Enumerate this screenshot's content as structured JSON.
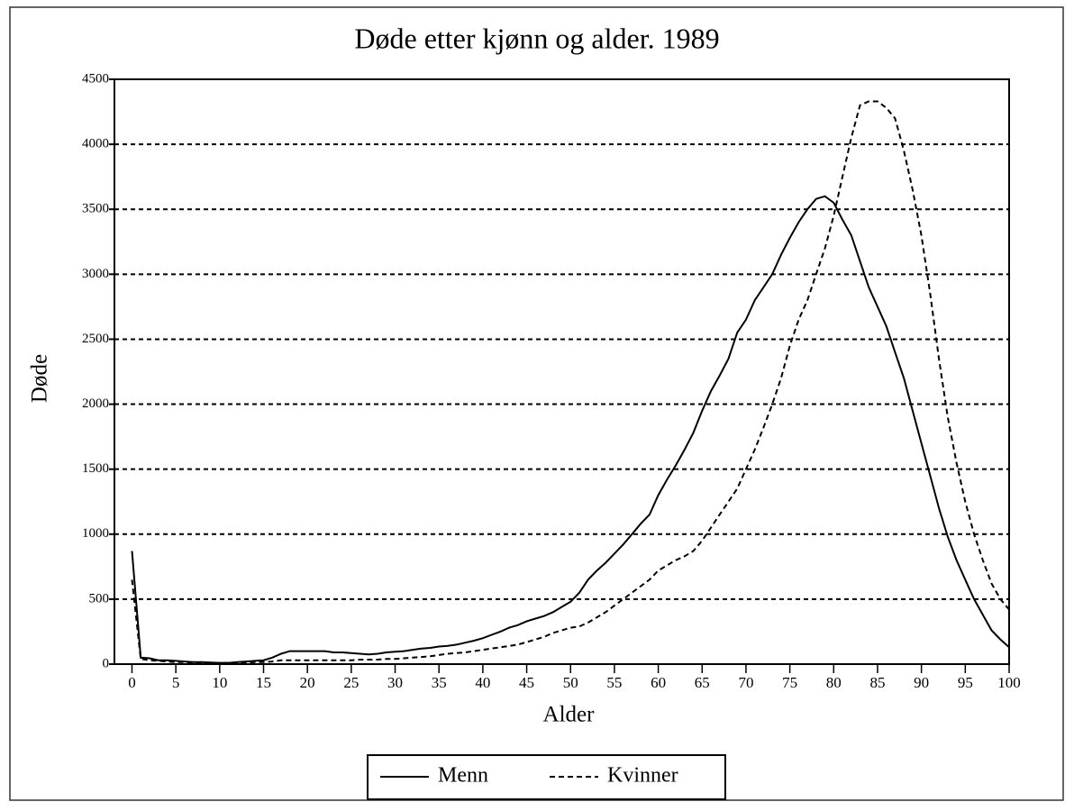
{
  "chart_data": {
    "type": "line",
    "title": "Døde etter kjønn og alder. 1989",
    "x_label": "Alder",
    "y_label": "Døde",
    "x": [
      0,
      1,
      2,
      3,
      4,
      5,
      6,
      7,
      8,
      9,
      10,
      11,
      12,
      13,
      14,
      15,
      16,
      17,
      18,
      19,
      20,
      21,
      22,
      23,
      24,
      25,
      26,
      27,
      28,
      29,
      30,
      31,
      32,
      33,
      34,
      35,
      36,
      37,
      38,
      39,
      40,
      41,
      42,
      43,
      44,
      45,
      46,
      47,
      48,
      49,
      50,
      51,
      52,
      53,
      54,
      55,
      56,
      57,
      58,
      59,
      60,
      61,
      62,
      63,
      64,
      65,
      66,
      67,
      68,
      69,
      70,
      71,
      72,
      73,
      74,
      75,
      76,
      77,
      78,
      79,
      80,
      81,
      82,
      83,
      84,
      85,
      86,
      87,
      88,
      89,
      90,
      91,
      92,
      93,
      94,
      95,
      96,
      97,
      98,
      99,
      100
    ],
    "series": [
      {
        "name": "Menn",
        "color": "#000000",
        "dash": "solid",
        "values": [
          870,
          50,
          45,
          30,
          30,
          25,
          20,
          15,
          15,
          12,
          10,
          10,
          15,
          20,
          25,
          30,
          50,
          80,
          100,
          100,
          100,
          100,
          100,
          90,
          90,
          85,
          80,
          75,
          80,
          90,
          95,
          100,
          110,
          120,
          125,
          135,
          140,
          150,
          165,
          180,
          200,
          225,
          250,
          280,
          300,
          330,
          350,
          370,
          400,
          440,
          480,
          550,
          650,
          720,
          780,
          850,
          920,
          1000,
          1080,
          1150,
          1300,
          1420,
          1530,
          1650,
          1780,
          1950,
          2100,
          2220,
          2350,
          2550,
          2650,
          2800,
          2900,
          3000,
          3150,
          3280,
          3400,
          3500,
          3580,
          3600,
          3550,
          3420,
          3300,
          3100,
          2900,
          2750,
          2600,
          2400,
          2200,
          1950,
          1700,
          1450,
          1200,
          980,
          800,
          650,
          500,
          380,
          260,
          190,
          130
        ]
      },
      {
        "name": "Kvinner",
        "color": "#000000",
        "dash": "dashed",
        "values": [
          650,
          40,
          30,
          25,
          20,
          15,
          15,
          12,
          12,
          10,
          10,
          10,
          12,
          12,
          15,
          15,
          20,
          30,
          30,
          30,
          30,
          30,
          30,
          30,
          30,
          30,
          35,
          35,
          35,
          40,
          40,
          45,
          50,
          55,
          60,
          70,
          80,
          85,
          90,
          100,
          110,
          120,
          130,
          140,
          150,
          170,
          190,
          210,
          240,
          260,
          280,
          290,
          320,
          360,
          400,
          450,
          500,
          550,
          600,
          650,
          720,
          760,
          800,
          830,
          870,
          950,
          1050,
          1150,
          1250,
          1350,
          1500,
          1650,
          1820,
          2000,
          2200,
          2450,
          2650,
          2800,
          3000,
          3200,
          3450,
          3750,
          4050,
          4300,
          4330,
          4330,
          4280,
          4200,
          3950,
          3650,
          3300,
          2850,
          2350,
          1900,
          1550,
          1250,
          1000,
          800,
          620,
          500,
          420
        ]
      }
    ],
    "xlim": [
      -2,
      100
    ],
    "xticks": [
      0,
      5,
      10,
      15,
      20,
      25,
      30,
      35,
      40,
      45,
      50,
      55,
      60,
      65,
      70,
      75,
      80,
      85,
      90,
      95,
      100
    ],
    "ylim": [
      0,
      4500
    ],
    "yticks": [
      0,
      500,
      1000,
      1500,
      2000,
      2500,
      3000,
      3500,
      4000,
      4500
    ],
    "grid": true,
    "legend": "bottom"
  }
}
